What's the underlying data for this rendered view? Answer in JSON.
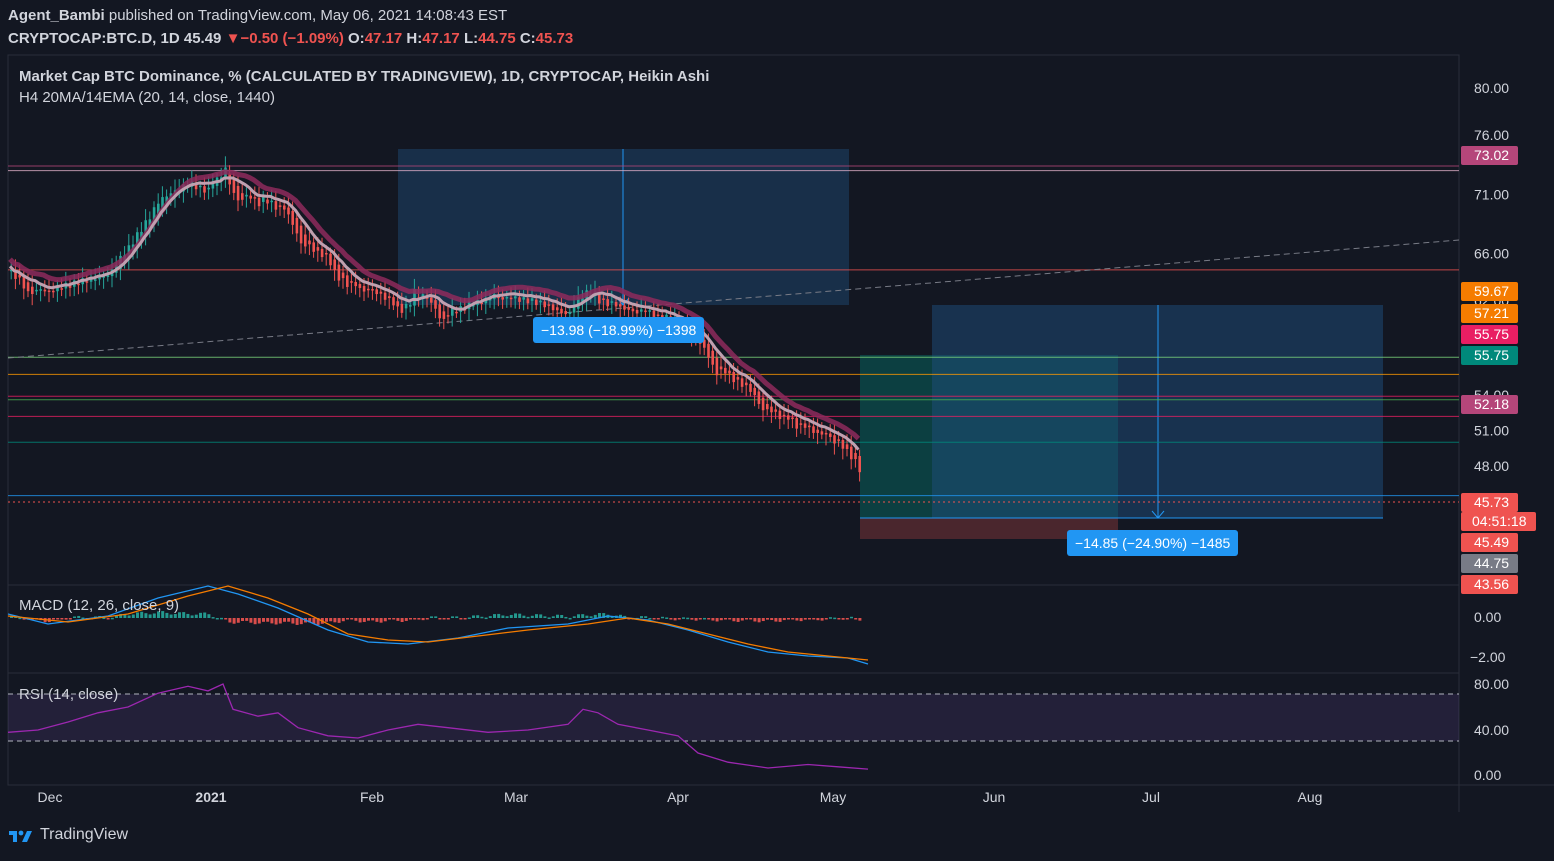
{
  "header": {
    "author": "Agent_Bambi",
    "published_text": "published on TradingView.com, May 06, 2021 14:08:43 EST",
    "symbol": "CRYPTOCAP:BTC.D, 1D",
    "last": "45.49",
    "arrow": "▼",
    "change": "−0.50 (−1.09%)",
    "o_label": "O:",
    "o": "47.17",
    "h_label": "H:",
    "h": "47.17",
    "l_label": "L:",
    "l": "44.75",
    "c_label": "C:",
    "c": "45.73"
  },
  "legend": {
    "title": "Market Cap BTC Dominance, % (CALCULATED BY TRADINGVIEW), 1D, CRYPTOCAP, Heikin Ashi",
    "indicator": "H4 20MA/14EMA (20, 14, close, 1440)",
    "macd": "MACD (12, 26, close, 9)",
    "rsi": "RSI (14, close)"
  },
  "annotations": {
    "measure_1": "−13.98 (−18.99%) −1398",
    "measure_2": "−14.85 (−24.90%) −1485"
  },
  "price_tags": [
    {
      "value": "73.02",
      "color": "#b5467a"
    },
    {
      "value": "59.67",
      "color": "#f57c00"
    },
    {
      "value": "57.21",
      "color": "#f57c00"
    },
    {
      "value": "55.75",
      "color": "#e91e63"
    },
    {
      "value": "55.75",
      "color": "#00897b"
    },
    {
      "value": "52.18",
      "color": "#b5467a"
    },
    {
      "value": "45.73",
      "color": "#ef5350"
    },
    {
      "value": "04:51:18",
      "color": "#ef5350"
    },
    {
      "value": "45.49",
      "color": "#ef5350"
    },
    {
      "value": "44.75",
      "color": "#787b86"
    },
    {
      "value": "43.56",
      "color": "#ef5350"
    }
  ],
  "colors": {
    "background": "#131722",
    "up": "#26a69a",
    "down": "#ef5350",
    "ma": "#c0a0b0",
    "ema": "#8e2a5c",
    "macd": "#2196f3",
    "signal": "#f57c00",
    "rsi": "#9c27b0"
  },
  "footer": {
    "brand": "TradingView",
    "logo_icon": "tradingview-logo-icon"
  },
  "chart_data": {
    "type": "line",
    "title": "Market Cap BTC Dominance, % (CALCULATED BY TRADINGVIEW), 1D, CRYPTOCAP, Heikin Ashi",
    "x_ticks": [
      "Dec",
      "2021",
      "Feb",
      "Mar",
      "Apr",
      "May",
      "Jun",
      "Jul",
      "Aug"
    ],
    "y_ticks": [
      "80.00",
      "76.00",
      "71.00",
      "66.00",
      "62.00",
      "54.00",
      "51.00",
      "48.00"
    ],
    "y_range": [
      43.5,
      82
    ],
    "price_points": [
      [
        0,
        64.5
      ],
      [
        10,
        63.8
      ],
      [
        20,
        62.5
      ],
      [
        30,
        63.0
      ],
      [
        40,
        62.7
      ],
      [
        50,
        63.2
      ],
      [
        60,
        63.3
      ],
      [
        70,
        63.6
      ],
      [
        80,
        63.8
      ],
      [
        90,
        64.0
      ],
      [
        100,
        64.2
      ],
      [
        110,
        65.5
      ],
      [
        120,
        66.5
      ],
      [
        130,
        67.8
      ],
      [
        140,
        69.0
      ],
      [
        150,
        70.5
      ],
      [
        160,
        71.0
      ],
      [
        170,
        71.5
      ],
      [
        180,
        72.0
      ],
      [
        190,
        71.5
      ],
      [
        200,
        71.3
      ],
      [
        205,
        72.5
      ],
      [
        210,
        72.0
      ],
      [
        215,
        73.5
      ],
      [
        220,
        72.0
      ],
      [
        225,
        71.0
      ],
      [
        230,
        70.3
      ],
      [
        235,
        70.8
      ],
      [
        240,
        70.9
      ],
      [
        245,
        70.5
      ],
      [
        250,
        70.2
      ],
      [
        255,
        70.6
      ],
      [
        260,
        70.4
      ],
      [
        265,
        70.0
      ],
      [
        270,
        69.8
      ],
      [
        275,
        69.9
      ],
      [
        280,
        69.0
      ],
      [
        285,
        68.3
      ],
      [
        290,
        67.0
      ],
      [
        295,
        66.6
      ],
      [
        300,
        66.7
      ],
      [
        305,
        66.2
      ],
      [
        310,
        66.0
      ],
      [
        315,
        65.8
      ],
      [
        320,
        65.5
      ],
      [
        325,
        64.4
      ],
      [
        330,
        63.9
      ],
      [
        335,
        63.6
      ],
      [
        340,
        63.2
      ],
      [
        345,
        63.5
      ],
      [
        350,
        63.0
      ],
      [
        355,
        62.8
      ],
      [
        360,
        63.0
      ],
      [
        365,
        62.8
      ],
      [
        370,
        62.5
      ],
      [
        375,
        62.3
      ],
      [
        380,
        62.0
      ],
      [
        385,
        61.8
      ],
      [
        390,
        61.0
      ],
      [
        395,
        61.4
      ],
      [
        400,
        61.6
      ],
      [
        405,
        62.8
      ],
      [
        410,
        62.2
      ],
      [
        415,
        62.5
      ],
      [
        420,
        62.0
      ],
      [
        425,
        61.5
      ],
      [
        430,
        60.6
      ],
      [
        435,
        60.3
      ],
      [
        440,
        61.0
      ],
      [
        445,
        61.3
      ],
      [
        450,
        61.2
      ],
      [
        455,
        61.5
      ],
      [
        460,
        61.7
      ],
      [
        465,
        61.9
      ],
      [
        470,
        61.8
      ],
      [
        475,
        62.0
      ],
      [
        480,
        62.3
      ],
      [
        485,
        62.5
      ],
      [
        490,
        62.2
      ],
      [
        495,
        62.1
      ],
      [
        500,
        62.3
      ],
      [
        510,
        62.1
      ],
      [
        520,
        62.0
      ],
      [
        530,
        61.8
      ],
      [
        540,
        61.5
      ],
      [
        550,
        61.0
      ],
      [
        560,
        60.8
      ],
      [
        565,
        61.8
      ],
      [
        570,
        62.2
      ],
      [
        575,
        62.5
      ],
      [
        580,
        62.8
      ],
      [
        585,
        62.6
      ],
      [
        590,
        62.0
      ],
      [
        595,
        61.8
      ],
      [
        600,
        61.7
      ],
      [
        605,
        61.8
      ],
      [
        610,
        61.4
      ],
      [
        615,
        61.3
      ],
      [
        620,
        61.2
      ],
      [
        625,
        61.0
      ],
      [
        630,
        61.0
      ],
      [
        635,
        61.3
      ],
      [
        640,
        61.0
      ],
      [
        645,
        60.7
      ],
      [
        650,
        60.4
      ],
      [
        655,
        60.6
      ],
      [
        660,
        60.5
      ],
      [
        665,
        60.3
      ],
      [
        670,
        60.0
      ],
      [
        675,
        59.5
      ],
      [
        680,
        59.2
      ],
      [
        685,
        58.8
      ],
      [
        690,
        58.5
      ],
      [
        695,
        57.9
      ],
      [
        700,
        57.2
      ],
      [
        705,
        56.0
      ],
      [
        710,
        55.8
      ],
      [
        715,
        56.2
      ],
      [
        720,
        55.6
      ],
      [
        725,
        55.3
      ],
      [
        730,
        55.0
      ],
      [
        735,
        54.8
      ],
      [
        740,
        54.5
      ],
      [
        745,
        54.0
      ],
      [
        750,
        53.2
      ],
      [
        755,
        52.6
      ],
      [
        760,
        52.8
      ],
      [
        765,
        52.5
      ],
      [
        770,
        52.2
      ],
      [
        775,
        52.0
      ],
      [
        780,
        52.2
      ],
      [
        785,
        51.5
      ],
      [
        790,
        51.3
      ],
      [
        795,
        51.5
      ],
      [
        800,
        51.1
      ],
      [
        805,
        50.9
      ],
      [
        810,
        50.6
      ],
      [
        815,
        50.8
      ],
      [
        820,
        50.5
      ],
      [
        825,
        50.0
      ],
      [
        830,
        50.0
      ],
      [
        835,
        49.5
      ],
      [
        840,
        49.0
      ],
      [
        845,
        48.5
      ],
      [
        850,
        47.8
      ],
      [
        855,
        46.8
      ],
      [
        860,
        45.7
      ]
    ],
    "levels": [
      {
        "price": 73.4,
        "color": "#b5467a"
      },
      {
        "price": 73.0,
        "color": "#e0b0c8"
      },
      {
        "price": 64.6,
        "color": "#ef5350"
      },
      {
        "price": 57.2,
        "color": "#7cd67c"
      },
      {
        "price": 55.75,
        "color": "#ff9800"
      },
      {
        "price": 53.9,
        "color": "#e91e63"
      },
      {
        "price": 53.6,
        "color": "#4caf50"
      },
      {
        "price": 52.2,
        "color": "#e91e63"
      },
      {
        "price": 50.0,
        "color": "#00897b"
      },
      {
        "price": 45.49,
        "color": "#2196f3"
      }
    ]
  }
}
